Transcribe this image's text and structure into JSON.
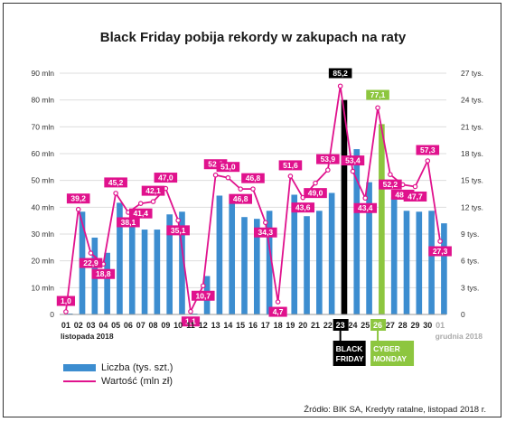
{
  "chart_data": {
    "type": "bar",
    "title": "Black Friday pobija rekordy w zakupach na raty",
    "categories": [
      "01",
      "02",
      "03",
      "04",
      "05",
      "06",
      "07",
      "08",
      "09",
      "10",
      "11",
      "12",
      "13",
      "14",
      "15",
      "16",
      "17",
      "18",
      "19",
      "20",
      "21",
      "22",
      "23",
      "24",
      "25",
      "26",
      "27",
      "28",
      "29",
      "30",
      "01"
    ],
    "category_sublabels": {
      "start": "listopada 2018",
      "end": "grudnia 2018"
    },
    "y_left": {
      "ticks": [
        "0",
        "10 mln",
        "20 mln",
        "30 mln",
        "40 mln",
        "50 mln",
        "60 mln",
        "70 mln",
        "80 mln",
        "90 mln"
      ],
      "lim": [
        0,
        90
      ]
    },
    "y_right": {
      "ticks": [
        "0",
        "3 tys.",
        "6 tys.",
        "9 tys.",
        "12 tys.",
        "15 tys.",
        "18 tys.",
        "21 tys.",
        "24 tys.",
        "27 tys."
      ],
      "lim": [
        0,
        27
      ]
    },
    "series": [
      {
        "name": "Liczba (tys. szt.)",
        "axis": "right",
        "kind": "bar",
        "values": [
          0.1,
          11.5,
          8.6,
          6.9,
          12.5,
          10.0,
          9.5,
          9.5,
          11.2,
          11.5,
          0.1,
          4.3,
          13.3,
          12.4,
          10.9,
          10.7,
          11.6,
          0.7,
          13.4,
          11.0,
          11.6,
          13.6,
          24.0,
          18.5,
          14.8,
          21.3,
          13.1,
          11.6,
          11.5,
          11.6,
          10.2
        ],
        "highlight": {
          "23": "#000000",
          "26": "#8dc63f"
        }
      },
      {
        "name": "Wartość (mln zł)",
        "axis": "left",
        "kind": "line",
        "values": [
          1.0,
          39.2,
          22.9,
          18.8,
          45.2,
          38.1,
          41.4,
          42.1,
          47.0,
          35.1,
          1.1,
          10.7,
          52.0,
          51.0,
          46.8,
          46.8,
          34.3,
          4.7,
          51.6,
          43.6,
          49.0,
          53.9,
          85.2,
          53.4,
          43.4,
          77.1,
          52.2,
          48.4,
          47.7,
          57.3,
          27.3
        ],
        "labels": [
          "1,0",
          "39,2",
          "22,9",
          "18,8",
          "45,2",
          "38,1",
          "41,4",
          "42,1",
          "47,0",
          "35,1",
          "1,1",
          "10,7",
          "52,0",
          "51,0",
          "46,8",
          "46,8",
          "34,3",
          "4,7",
          "51,6",
          "43,6",
          "49,0",
          "53,9",
          "85,2",
          "53,4",
          "43,4",
          "77,1",
          "52,2",
          "48,4",
          "47,7",
          "57,3",
          "27,3"
        ]
      }
    ],
    "annotations": [
      {
        "day": "23",
        "text": [
          "BLACK",
          "FRIDAY"
        ],
        "color": "#000000"
      },
      {
        "day": "26",
        "text": [
          "CYBER",
          "MONDAY"
        ],
        "color": "#8dc63f"
      }
    ],
    "colors": {
      "bar": "#3c8dd0",
      "line": "#e0128d",
      "black_friday": "#000000",
      "cyber_monday": "#8dc63f"
    },
    "grid": true,
    "legend_position": "bottom-left"
  },
  "source": "Źródło: BIK SA, Kredyty ratalne, listopad 2018 r."
}
